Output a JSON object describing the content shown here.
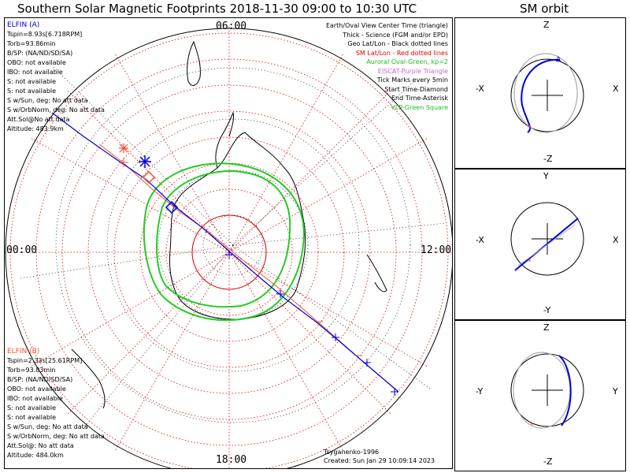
{
  "title": "Southern Solar Magnetic Footprints 2018-11-30 09:00 to 10:30 UTC",
  "orbit_title": "SM orbit",
  "hour_labels": {
    "top": "06:00",
    "left": "00:00",
    "right": "12:00",
    "bottom": "18:00"
  },
  "legend": [
    {
      "text": "Earth/Oval View Center Time (triangle)",
      "color": "#000000"
    },
    {
      "text": "Thick - Science (FGM and/or EPD)",
      "color": "#000000"
    },
    {
      "text": "Geo Lat/Lon - Black dotted lines",
      "color": "#000000"
    },
    {
      "text": "SM Lat/Lon - Red dotted lines",
      "color": "#e00000"
    },
    {
      "text": "Auroral Oval-Green, kp=2",
      "color": "#22bb22"
    },
    {
      "text": "EISCAT-Purple Triangle",
      "color": "#cc66cc"
    },
    {
      "text": "Tick Marks every 5min",
      "color": "#000000"
    },
    {
      "text": "Start Time-Diamond",
      "color": "#000000"
    },
    {
      "text": "End Time-Asterisk",
      "color": "#000000"
    },
    {
      "text": "VLP-Green Square",
      "color": "#22bb22"
    }
  ],
  "probe_a": {
    "name": "ELFIN (A)",
    "color": "#0000dd",
    "lines": [
      "Tspin=8.93s[6.718RPM]",
      "Torb=93.86min",
      "B/SP: (NA/ND/SD/SA)",
      "OBO: not available",
      "IBO: not available",
      "S: not available",
      "S: not available",
      "S w/Sun, deg: No att data",
      "S w/OrbNorm, deg: No att data",
      "Att.Sol@No att data",
      "Altitude: 483.9km"
    ]
  },
  "probe_b": {
    "name": "ELFIN (B)",
    "color": "#ee5533",
    "lines": [
      "Tspin=2.33s[25.61RPM]",
      "Torb=93.83min",
      "B/SP: (NA/ND/SD/SA)",
      "OBO: not available",
      "IBO: not available",
      "S: not available",
      "S: not available",
      "S w/Sun, deg: No att data",
      "S w/OrbNorm, deg: No att data",
      "Att.Sol@: No att data",
      "Altitude: 484.0km"
    ]
  },
  "credit": {
    "author": "Tsyganenko-1996",
    "created": "Created: Sun Jan 29 10:09:14 2023"
  },
  "orbit_panels": [
    {
      "up": "Z",
      "down": "-Z",
      "left": "-X",
      "right": "X"
    },
    {
      "up": "Y",
      "down": "-Y",
      "left": "-X",
      "right": "X"
    },
    {
      "up": "Z",
      "down": "-Z",
      "left": "-Y",
      "right": "Y"
    }
  ],
  "colors": {
    "probe_a": "#0000dd",
    "probe_b": "#ee5533",
    "sm_grid": "#e00000",
    "geo_grid": "#000000",
    "auroral_oval": "#22cc22"
  }
}
